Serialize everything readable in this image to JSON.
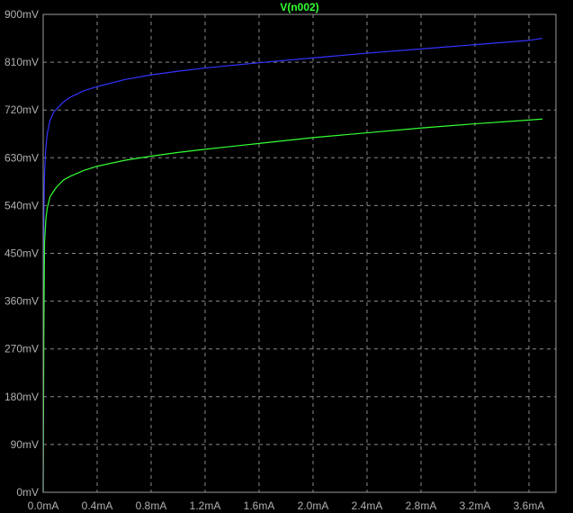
{
  "chart_data": {
    "type": "line",
    "title": "V(n002)",
    "background": "#000000",
    "xlabel": "",
    "ylabel": "",
    "x_unit": "mA",
    "y_unit": "mV",
    "xlim": [
      0.0,
      3.7
    ],
    "ylim": [
      0,
      900
    ],
    "x_ticks": [
      "0.0mA",
      "0.4mA",
      "0.8mA",
      "1.2mA",
      "1.6mA",
      "2.0mA",
      "2.4mA",
      "2.8mA",
      "3.2mA",
      "3.6mA"
    ],
    "y_ticks": [
      "0mV",
      "90mV",
      "180mV",
      "270mV",
      "360mV",
      "450mV",
      "540mV",
      "630mV",
      "720mV",
      "810mV",
      "900mV"
    ],
    "grid": true,
    "series": [
      {
        "color": "#3333ff",
        "x": [
          0.0,
          0.005,
          0.01,
          0.02,
          0.03,
          0.05,
          0.08,
          0.1,
          0.15,
          0.2,
          0.3,
          0.4,
          0.6,
          0.8,
          1.0,
          1.2,
          1.6,
          2.0,
          2.4,
          2.8,
          3.2,
          3.6,
          3.7
        ],
        "y": [
          0,
          520,
          600,
          650,
          675,
          700,
          717,
          722,
          735,
          744,
          756,
          764,
          777,
          786,
          793,
          799,
          809,
          818,
          827,
          835,
          843,
          851,
          855
        ]
      },
      {
        "name": "V(n002)",
        "color": "#33ff33",
        "x": [
          0.0,
          0.005,
          0.01,
          0.02,
          0.03,
          0.05,
          0.08,
          0.1,
          0.15,
          0.2,
          0.3,
          0.4,
          0.6,
          0.8,
          1.0,
          1.2,
          1.6,
          2.0,
          2.4,
          2.8,
          3.2,
          3.6,
          3.7
        ],
        "y": [
          0,
          300,
          470,
          515,
          535,
          556,
          568,
          575,
          588,
          595,
          606,
          614,
          625,
          633,
          640,
          646,
          657,
          668,
          677,
          686,
          694,
          701,
          703
        ]
      }
    ]
  }
}
